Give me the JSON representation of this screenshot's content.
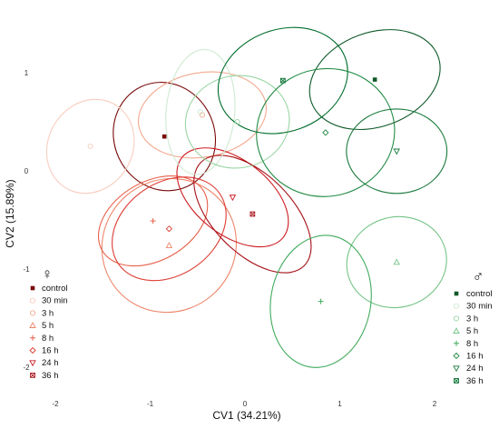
{
  "chart_data": {
    "type": "scatter",
    "title": "",
    "xlabel": "CV1 (34.21%)",
    "ylabel": "CV2 (15.89%)",
    "xlim": [
      -2.3,
      2.35
    ],
    "ylim": [
      -2.35,
      1.72
    ],
    "xticks": [
      -2,
      -1,
      0,
      1,
      2
    ],
    "yticks": [
      -2,
      -1,
      0,
      1
    ],
    "legends": [
      {
        "title": "♀",
        "placement": "bottom-left",
        "series": [
          {
            "name": "control",
            "marker": "square-filled",
            "color": "#7a0a0a",
            "centroid": [
              -0.85,
              0.35
            ],
            "ellipse": {
              "rx": 0.53,
              "ry": 0.56,
              "angle": 25
            }
          },
          {
            "name": "30 min",
            "marker": "circle",
            "color": "#f9cdbf",
            "centroid": [
              -1.63,
              0.25
            ],
            "ellipse": {
              "rx": 0.51,
              "ry": 0.43,
              "angle": 60
            }
          },
          {
            "name": "3 h",
            "marker": "circle",
            "color": "#f3a98f",
            "centroid": [
              -0.45,
              0.57
            ],
            "ellipse": {
              "rx": 0.68,
              "ry": 0.43,
              "angle": 10
            }
          },
          {
            "name": "5 h",
            "marker": "triangle-up",
            "color": "#ee866a",
            "centroid": [
              -0.8,
              -0.76
            ],
            "ellipse": {
              "rx": 0.72,
              "ry": 0.67,
              "angle": 40
            }
          },
          {
            "name": "8 h",
            "marker": "plus",
            "color": "#e8604a",
            "centroid": [
              -0.97,
              -0.51
            ],
            "ellipse": {
              "rx": 0.62,
              "ry": 0.4,
              "angle": 30
            }
          },
          {
            "name": "16 h",
            "marker": "diamond",
            "color": "#dd3c33",
            "centroid": [
              -0.8,
              -0.59
            ],
            "ellipse": {
              "rx": 0.65,
              "ry": 0.47,
              "angle": 35
            }
          },
          {
            "name": "24 h",
            "marker": "triangle-down",
            "color": "#cc1a1f",
            "centroid": [
              -0.13,
              -0.27
            ],
            "ellipse": {
              "rx": 0.68,
              "ry": 0.38,
              "angle": -38
            }
          },
          {
            "name": "36 h",
            "marker": "square-x",
            "color": "#a50f15",
            "centroid": [
              0.08,
              -0.44
            ],
            "ellipse": {
              "rx": 0.77,
              "ry": 0.4,
              "angle": -45
            }
          }
        ]
      },
      {
        "title": "♂",
        "placement": "bottom-right",
        "series": [
          {
            "name": "control",
            "marker": "square-filled",
            "color": "#0f5a2a",
            "centroid": [
              1.37,
              0.93
            ],
            "ellipse": {
              "rx": 0.71,
              "ry": 0.48,
              "angle": 20
            }
          },
          {
            "name": "30 min",
            "marker": "circle",
            "color": "#cfe9d2",
            "centroid": [
              -0.47,
              0.6
            ],
            "ellipse": {
              "rx": 0.66,
              "ry": 0.35,
              "angle": 85
            }
          },
          {
            "name": "3 h",
            "marker": "circle",
            "color": "#9ad6a4",
            "centroid": [
              -0.08,
              0.5
            ],
            "ellipse": {
              "rx": 0.55,
              "ry": 0.47,
              "angle": 10
            }
          },
          {
            "name": "5 h",
            "marker": "triangle-up",
            "color": "#74c487",
            "centroid": [
              1.6,
              -0.93
            ],
            "ellipse": {
              "rx": 0.53,
              "ry": 0.46,
              "angle": 15
            }
          },
          {
            "name": "8 h",
            "marker": "plus",
            "color": "#41ab5d",
            "centroid": [
              0.8,
              -1.33
            ],
            "ellipse": {
              "rx": 0.7,
              "ry": 0.51,
              "angle": 80
            }
          },
          {
            "name": "16 h",
            "marker": "diamond",
            "color": "#238b45",
            "centroid": [
              0.85,
              0.39
            ],
            "ellipse": {
              "rx": 0.73,
              "ry": 0.65,
              "angle": 10
            }
          },
          {
            "name": "24 h",
            "marker": "triangle-down",
            "color": "#1a7a3c",
            "centroid": [
              1.6,
              0.2
            ],
            "ellipse": {
              "rx": 0.53,
              "ry": 0.43,
              "angle": 0
            }
          },
          {
            "name": "36 h",
            "marker": "square-x",
            "color": "#006d2c",
            "centroid": [
              0.4,
              0.92
            ],
            "ellipse": {
              "rx": 0.7,
              "ry": 0.52,
              "angle": 20
            }
          }
        ]
      }
    ]
  }
}
